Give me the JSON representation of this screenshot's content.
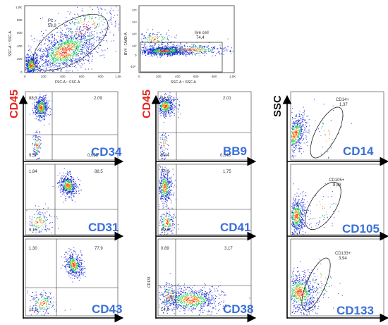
{
  "colors": {
    "cd45_label": "#e8251f",
    "ssc_label": "#111111",
    "marker_label": "#3a6fd8",
    "dots_low": "#1a2bd6",
    "dots_mid": "#1fcf5a",
    "dots_high": "#ff9a1a",
    "dots_peak": "#ff3a10"
  },
  "top_plots": {
    "fsc_ssc": {
      "y_label": "SSC-A :: SSC-A",
      "x_label": "FSC-A :: FSC-A",
      "gate_name": "P1",
      "gate_value": "58,9",
      "y_ticks": [
        "1,0K",
        "800",
        "600",
        "400",
        "200",
        "0"
      ],
      "x_ticks": [
        "0",
        "200",
        "400",
        "600",
        "800",
        "1,0K"
      ]
    },
    "viability": {
      "y_label": "BV4 : 7AAD-A",
      "x_label": "SSC-A :: SSC-A",
      "gate_name": "live cell",
      "gate_value": "74,4",
      "y_ticks": [
        "10⁵",
        "10⁴",
        "10³",
        "10²",
        "0",
        "-10²"
      ],
      "x_ticks": [
        "0",
        "200",
        "400",
        "600",
        "800",
        "1,0K"
      ]
    }
  },
  "axis_labels": {
    "cd45_col1": "CD45",
    "cd45_col2": "CD45",
    "ssc_col3": "SSC",
    "cd133_small": "CD133"
  },
  "quad_plots": [
    {
      "id": "cd34",
      "marker": "CD34",
      "ul": "88,3",
      "ur": "2,09",
      "ll": "9,57",
      "lr": "0,055"
    },
    {
      "id": "bb9",
      "marker": "BB9",
      "ul": "91,5",
      "ur": "2,01",
      "ll": "6,44",
      "lr": "0,048"
    },
    {
      "id": "cd31",
      "marker": "CD31",
      "ul": "1,84",
      "ur": "88,5",
      "ll": "9,15",
      "lr": ""
    },
    {
      "id": "cd41",
      "marker": "CD41",
      "ul": "77,6",
      "ur": "1,75",
      "ll": "20,5",
      "lr": ""
    },
    {
      "id": "cd43",
      "marker": "CD43",
      "ul": "1,30",
      "ur": "77,9",
      "ll": "12,9",
      "lr": ""
    },
    {
      "id": "cd38",
      "marker": "CD38",
      "ul": "0,89",
      "ur": "3,17",
      "ll": "14,8",
      "lr": ""
    }
  ],
  "gate_plots": [
    {
      "id": "cd14",
      "marker": "CD14",
      "gate_name": "CD14+",
      "gate_value": "1,37"
    },
    {
      "id": "cd105",
      "marker": "CD105",
      "gate_name": "CD105+",
      "gate_value": "8,53"
    },
    {
      "id": "cd133",
      "marker": "CD133",
      "gate_name": "CD133+",
      "gate_value": "3,94"
    }
  ]
}
